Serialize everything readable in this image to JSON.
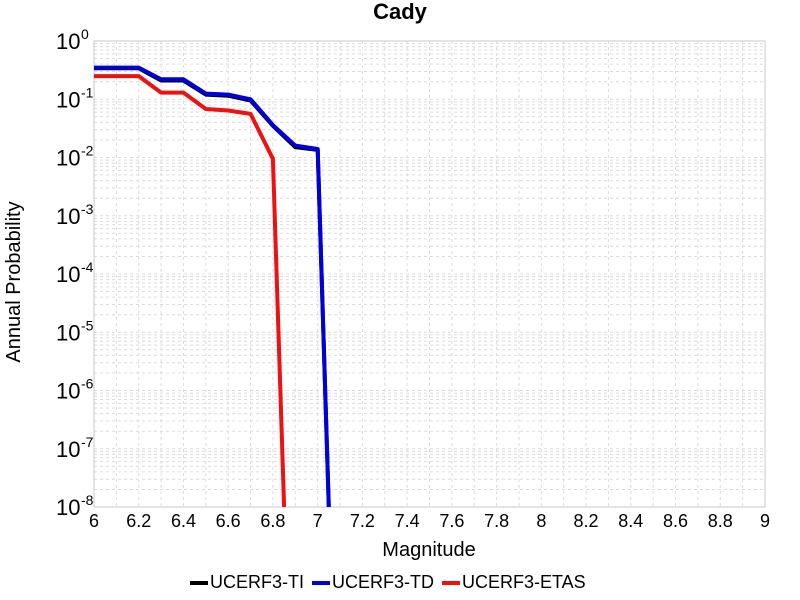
{
  "chart_data": {
    "type": "line",
    "title": "Cady",
    "xlabel": "Magnitude",
    "ylabel": "Annual Probability",
    "xlim": [
      6,
      9
    ],
    "ylim": [
      1e-08,
      1
    ],
    "yscale": "log",
    "grid": true,
    "legend_position": "bottom",
    "x_ticks": [
      "6",
      "6.2",
      "6.4",
      "6.6",
      "6.8",
      "7",
      "7.2",
      "7.4",
      "7.6",
      "7.8",
      "8",
      "8.2",
      "8.4",
      "8.6",
      "8.8",
      "9"
    ],
    "y_ticks": [
      {
        "base": "10",
        "exp": "0",
        "value": 1
      },
      {
        "base": "10",
        "exp": "-1",
        "value": 0.1
      },
      {
        "base": "10",
        "exp": "-2",
        "value": 0.01
      },
      {
        "base": "10",
        "exp": "-3",
        "value": 0.001
      },
      {
        "base": "10",
        "exp": "-4",
        "value": 0.0001
      },
      {
        "base": "10",
        "exp": "-5",
        "value": 1e-05
      },
      {
        "base": "10",
        "exp": "-6",
        "value": 1e-06
      },
      {
        "base": "10",
        "exp": "-7",
        "value": 1e-07
      },
      {
        "base": "10",
        "exp": "-8",
        "value": 1e-08
      }
    ],
    "series": [
      {
        "name": "UCERF3-TI",
        "color": "#000000",
        "x": [
          6.0,
          6.1,
          6.2,
          6.3,
          6.4,
          6.5,
          6.6,
          6.7,
          6.8,
          6.9,
          7.0,
          7.05
        ],
        "y": [
          0.34,
          0.34,
          0.34,
          0.21,
          0.21,
          0.12,
          0.115,
          0.095,
          0.035,
          0.015,
          0.0135,
          1e-08
        ]
      },
      {
        "name": "UCERF3-TD",
        "color": "#0000dd",
        "x": [
          6.0,
          6.1,
          6.2,
          6.3,
          6.4,
          6.5,
          6.6,
          6.7,
          6.8,
          6.9,
          7.0,
          7.05
        ],
        "y": [
          0.35,
          0.35,
          0.35,
          0.22,
          0.22,
          0.125,
          0.12,
          0.1,
          0.036,
          0.016,
          0.014,
          1e-08
        ]
      },
      {
        "name": "UCERF3-ETAS",
        "color": "#ee1111",
        "x": [
          6.0,
          6.1,
          6.2,
          6.3,
          6.4,
          6.5,
          6.6,
          6.7,
          6.8,
          6.85
        ],
        "y": [
          0.25,
          0.25,
          0.25,
          0.13,
          0.13,
          0.068,
          0.064,
          0.056,
          0.0095,
          1e-08
        ]
      }
    ]
  }
}
